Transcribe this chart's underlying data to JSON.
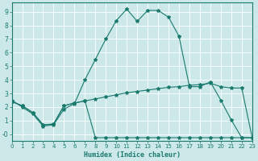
{
  "xlabel": "Humidex (Indice chaleur)",
  "bg_color": "#cce8e8",
  "grid_color": "#ffffff",
  "line_color": "#1a7a6e",
  "xlim": [
    0,
    23
  ],
  "ylim": [
    -0.5,
    9.7
  ],
  "xticks": [
    0,
    1,
    2,
    3,
    4,
    5,
    6,
    7,
    8,
    9,
    10,
    11,
    12,
    13,
    14,
    15,
    16,
    17,
    18,
    19,
    20,
    21,
    22,
    23
  ],
  "yticks": [
    0,
    1,
    2,
    3,
    4,
    5,
    6,
    7,
    8,
    9
  ],
  "ytick_labels": [
    "-0",
    "1",
    "2",
    "3",
    "4",
    "5",
    "6",
    "7",
    "8",
    "9"
  ],
  "series1_x": [
    0,
    1,
    2,
    3,
    4,
    5,
    6,
    7,
    8,
    9,
    10,
    11,
    12,
    13,
    14,
    15,
    16,
    17,
    18,
    19,
    20,
    21,
    22,
    23
  ],
  "series1_y": [
    2.5,
    2.0,
    1.5,
    0.6,
    0.7,
    1.85,
    2.25,
    4.0,
    5.5,
    7.0,
    8.35,
    9.2,
    8.3,
    9.1,
    9.1,
    8.6,
    7.2,
    3.5,
    3.5,
    3.85,
    2.5,
    1.05,
    -0.25,
    -0.25
  ],
  "series2_x": [
    0,
    1,
    2,
    3,
    4,
    5,
    6,
    7,
    8,
    9,
    10,
    11,
    12,
    13,
    14,
    15,
    16,
    17,
    18,
    19,
    20,
    21,
    22,
    23
  ],
  "series2_y": [
    2.4,
    2.1,
    1.6,
    0.7,
    0.75,
    2.1,
    2.3,
    2.45,
    2.6,
    2.75,
    2.9,
    3.05,
    3.15,
    3.25,
    3.35,
    3.45,
    3.5,
    3.6,
    3.65,
    3.75,
    3.5,
    3.4,
    3.4,
    -0.25
  ],
  "series3_x": [
    0,
    1,
    2,
    3,
    4,
    5,
    6,
    7,
    8,
    9,
    10,
    11,
    12,
    13,
    14,
    15,
    16,
    17,
    18,
    19,
    20,
    21,
    22,
    23
  ],
  "series3_y": [
    2.4,
    2.1,
    1.6,
    0.7,
    0.75,
    2.1,
    2.3,
    2.45,
    -0.25,
    -0.25,
    -0.25,
    -0.25,
    -0.25,
    -0.25,
    -0.25,
    -0.25,
    -0.25,
    -0.25,
    -0.25,
    -0.25,
    -0.25,
    -0.25,
    -0.25,
    -0.25
  ]
}
